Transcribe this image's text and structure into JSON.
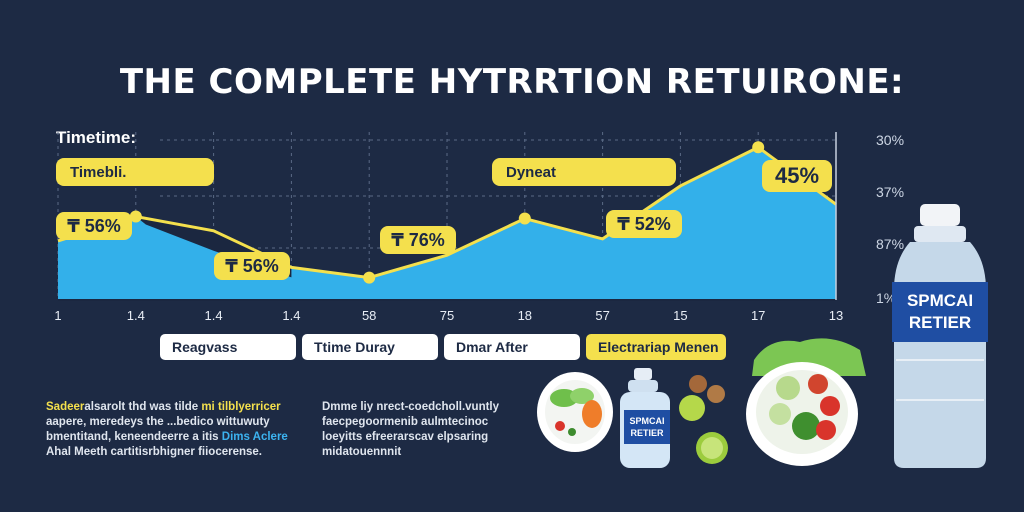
{
  "title": "THE COMPLETE HYTRRTION RETUIRONE:",
  "timeline_label": "Timetime:",
  "callouts": {
    "start": "Timebli.",
    "peak": "Dyneat"
  },
  "chart_data": {
    "type": "area",
    "x_labels": [
      "1",
      "1.4",
      "1.4",
      "1.4",
      "58",
      "75",
      "18",
      "57",
      "15",
      "17",
      "13"
    ],
    "y_labels": [
      "30%",
      "37%",
      "87%",
      "1%"
    ],
    "grid": true,
    "series": [
      {
        "values": [
          58,
          82,
          68,
          32,
          22,
          44,
          80,
          60,
          112,
          150,
          94
        ]
      }
    ],
    "ylim": [
      0,
      165
    ],
    "data_labels": [
      "₸ 56%",
      "₸ 56%",
      "₸ 76%",
      "₸ 52%",
      "45%"
    ],
    "colors": {
      "area": "#33b0ea",
      "line": "#f4e04d",
      "marker": "#f4e04d"
    }
  },
  "phases": [
    {
      "label": "Reagvass",
      "active": false
    },
    {
      "label": "Ttime Duray",
      "active": false
    },
    {
      "label": "Dmar After",
      "active": false
    },
    {
      "label": "Electrariap Menen",
      "active": true
    }
  ],
  "notes_left": {
    "line1_y": "Sadeer",
    "line1": "alsarolt thd ",
    "line1_b": "was",
    "line1_end": " tilde ",
    "line1_y2": "mi tilblyerricer",
    "line2": "aapere, meredeys the ...bedico wittuwuty",
    "line3": "bmentitand, keneendeerre a itis ",
    "line3_b": "Dims Aclere",
    "line4": "Ahal Meeth cartitisrbhigner fiiocerense."
  },
  "notes_right": {
    "line1": "Dmme liy nrect-coedcholl.vuntly",
    "line2": "faecpegoormenib aulmtecinoc",
    "line3": "loeyitts efreerarscav elpsaring",
    "line4": "midatouennnit"
  },
  "bottle_label": {
    "top": "SPMCAI",
    "bottom": "RETIER"
  },
  "small_bottle_label": {
    "top": "SPMCAI",
    "bottom": "RETIER"
  }
}
